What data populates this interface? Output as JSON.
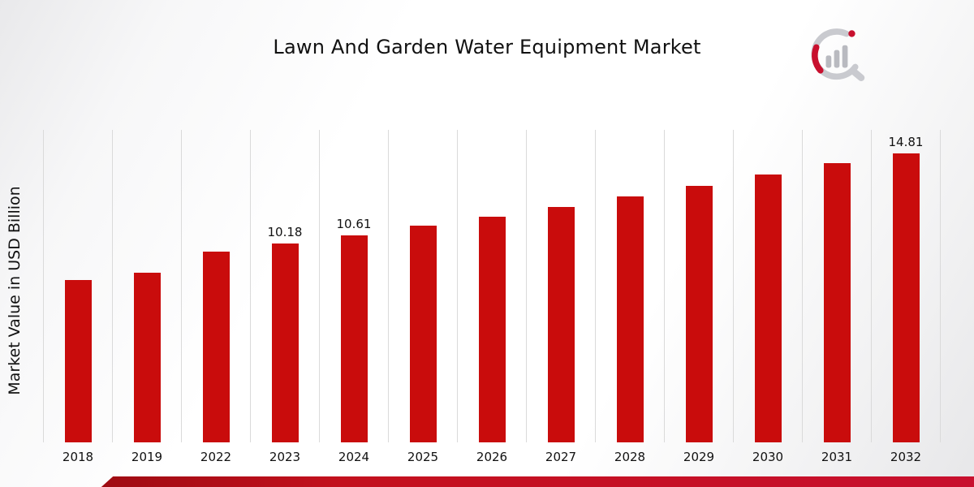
{
  "page": {
    "title": "Lawn And Garden Water Equipment Market"
  },
  "chart_data": {
    "type": "bar",
    "title": "Lawn And Garden Water Equipment Market",
    "xlabel": "",
    "ylabel": "Market Value in USD Billion",
    "ylim": [
      0,
      16
    ],
    "grid": "vertical",
    "legend": "none",
    "bar_color": "#c90c0c",
    "categories": [
      "2018",
      "2019",
      "2022",
      "2023",
      "2024",
      "2025",
      "2026",
      "2027",
      "2028",
      "2029",
      "2030",
      "2031",
      "2032"
    ],
    "values": [
      8.3,
      8.68,
      9.78,
      10.18,
      10.61,
      11.08,
      11.55,
      12.05,
      12.58,
      13.15,
      13.72,
      14.3,
      14.81
    ],
    "data_labels": {
      "2023": "10.18",
      "2024": "10.61",
      "2032": "14.81"
    }
  },
  "footer": {
    "accent_color": "#c8102e"
  },
  "logo": {
    "name": "market-research-logo"
  }
}
